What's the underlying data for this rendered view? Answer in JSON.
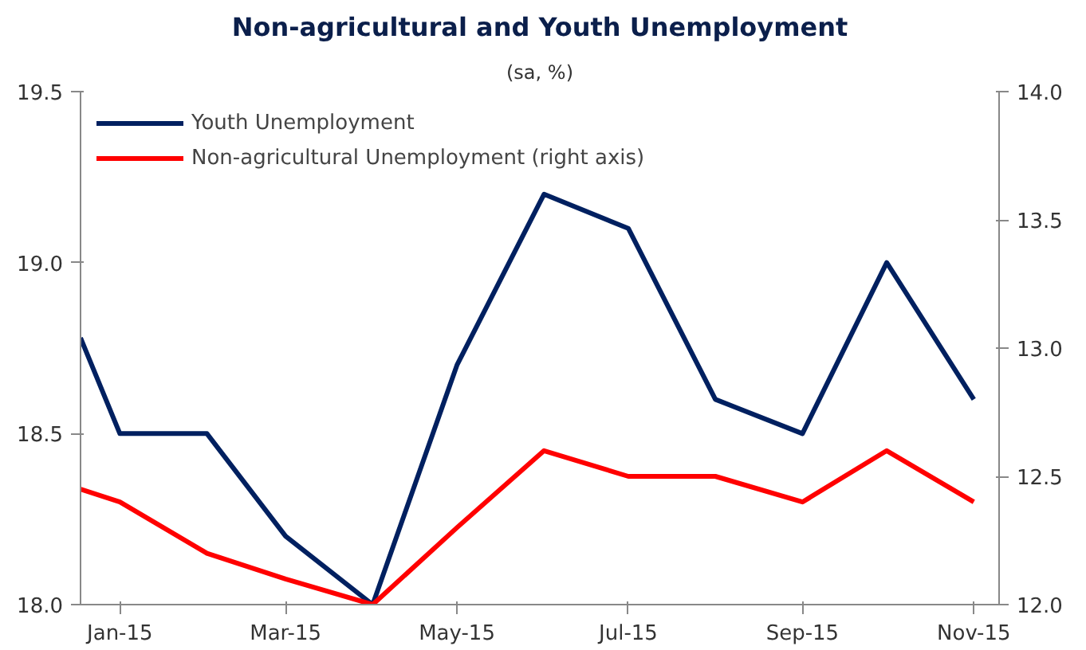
{
  "chart_data": {
    "type": "line",
    "title": "Non-agricultural and Youth Unemployment",
    "subtitle": "(sa, %)",
    "x": [
      "2014-12-18",
      "2015-01",
      "2015-02",
      "2015-03",
      "2015-04",
      "2015-05",
      "2015-06",
      "2015-07",
      "2015-08",
      "2015-09",
      "2015-10",
      "2015-11"
    ],
    "series": [
      {
        "name": "Youth Unemployment",
        "color": "#002060",
        "values": [
          18.78,
          18.5,
          18.5,
          18.2,
          18.0,
          18.7,
          19.2,
          19.1,
          18.6,
          18.5,
          19.0,
          18.6
        ]
      },
      {
        "name": "Non-agricultural Unemployment (right axis)",
        "color": "#ff0000",
        "axis": "y2",
        "values": [
          12.45,
          12.4,
          12.2,
          12.1,
          12.0,
          12.3,
          12.6,
          12.5,
          12.5,
          12.4,
          12.6,
          12.4
        ]
      }
    ],
    "xlim": [
      "2014-12-18",
      "2015-11-10"
    ],
    "xticks": [
      {
        "value": "2015-01",
        "label": "Jan-15"
      },
      {
        "value": "2015-03",
        "label": "Mar-15"
      },
      {
        "value": "2015-05",
        "label": "May-15"
      },
      {
        "value": "2015-07",
        "label": "Jul-15"
      },
      {
        "value": "2015-09",
        "label": "Sep-15"
      },
      {
        "value": "2015-11",
        "label": "Nov-15"
      }
    ],
    "ylim": [
      18.0,
      19.5
    ],
    "yticks": [
      {
        "value": 18.0,
        "label": "18.0"
      },
      {
        "value": 18.5,
        "label": "18.5"
      },
      {
        "value": 19.0,
        "label": "19.0"
      },
      {
        "value": 19.5,
        "label": "19.5"
      }
    ],
    "y2lim": [
      12.0,
      14.0
    ],
    "y2ticks": [
      {
        "value": 12.0,
        "label": "12.0"
      },
      {
        "value": 12.5,
        "label": "12.5"
      },
      {
        "value": 13.0,
        "label": "13.0"
      },
      {
        "value": 13.5,
        "label": "13.5"
      },
      {
        "value": 14.0,
        "label": "14.0"
      }
    ],
    "grid": false,
    "legend": "top left",
    "marker": "none",
    "line_style": "solid"
  }
}
